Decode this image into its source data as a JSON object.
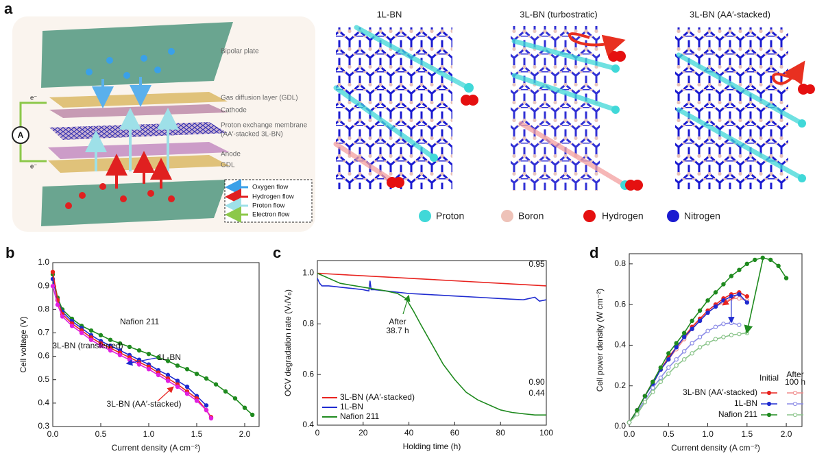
{
  "diagram": {
    "panel": "a",
    "layers": [
      "Bipolar plate",
      "Gas diffusion layer (GDL)",
      "Cathode",
      "Proton exchange membrane",
      "(AA′-stacked 3L-BN)",
      "Anode",
      "GDL"
    ],
    "electron": "e⁻",
    "ammeter": "A",
    "flows": [
      "Oxygen flow",
      "Hydrogen flow",
      "Proton flow",
      "Electron flow"
    ],
    "structures": [
      "1L-BN",
      "3L-BN (turbostratic)",
      "3L-BN (AA′-stacked)"
    ],
    "atoms": [
      "Proton",
      "Boron",
      "Hydrogen",
      "Nitrogen"
    ]
  },
  "chart_data": [
    {
      "type": "line",
      "panel": "b",
      "xlabel": "Current density (A cm⁻²)",
      "ylabel": "Cell voltage (V)",
      "xlim": [
        0,
        2.15
      ],
      "ylim": [
        0.3,
        1.0
      ],
      "xticks": [
        {
          "value": 0,
          "label": "0.0"
        },
        0.5,
        {
          "value": 1,
          "label": "1.0"
        },
        1.5,
        {
          "value": 2,
          "label": "2.0"
        }
      ],
      "yticks": [
        0.3,
        0.4,
        0.5,
        0.6,
        0.7,
        0.8,
        0.9,
        {
          "value": 1,
          "label": "1.0"
        }
      ],
      "series": [
        {
          "name": "Nafion 211",
          "color": "#1f8a1f",
          "marker": "filled",
          "x": [
            0,
            0.05,
            0.1,
            0.2,
            0.3,
            0.4,
            0.5,
            0.6,
            0.7,
            0.8,
            0.9,
            1.0,
            1.1,
            1.2,
            1.3,
            1.4,
            1.5,
            1.6,
            1.7,
            1.8,
            1.9,
            2.0,
            2.08
          ],
          "values": [
            0.95,
            0.85,
            0.8,
            0.76,
            0.73,
            0.71,
            0.69,
            0.67,
            0.655,
            0.64,
            0.625,
            0.61,
            0.595,
            0.58,
            0.56,
            0.545,
            0.525,
            0.505,
            0.48,
            0.45,
            0.42,
            0.38,
            0.35
          ]
        },
        {
          "name": "1L-BN",
          "color": "#1f2bd0",
          "marker": "filled",
          "x": [
            0,
            0.05,
            0.1,
            0.2,
            0.3,
            0.4,
            0.5,
            0.6,
            0.7,
            0.8,
            0.9,
            1.0,
            1.1,
            1.2,
            1.3,
            1.4,
            1.5,
            1.6
          ],
          "values": [
            0.93,
            0.84,
            0.79,
            0.75,
            0.72,
            0.69,
            0.665,
            0.645,
            0.625,
            0.605,
            0.585,
            0.565,
            0.54,
            0.52,
            0.495,
            0.47,
            0.43,
            0.39
          ]
        },
        {
          "name": "3L-BN (AA′-stacked)",
          "color": "#e8231f",
          "marker": "filled",
          "x": [
            0,
            0.05,
            0.1,
            0.2,
            0.3,
            0.4,
            0.5,
            0.6,
            0.7,
            0.8,
            0.9,
            1.0,
            1.1,
            1.2,
            1.3,
            1.4,
            1.5,
            1.6,
            1.65
          ],
          "values": [
            0.96,
            0.84,
            0.78,
            0.74,
            0.71,
            0.68,
            0.655,
            0.635,
            0.615,
            0.595,
            0.575,
            0.555,
            0.53,
            0.505,
            0.48,
            0.45,
            0.42,
            0.37,
            0.34
          ]
        },
        {
          "name": "3L-BN (transferred)",
          "color": "#e020e0",
          "marker": "filled",
          "x": [
            0,
            0.05,
            0.1,
            0.2,
            0.3,
            0.4,
            0.5,
            0.6,
            0.7,
            0.8,
            0.9,
            1.0,
            1.1,
            1.2,
            1.3,
            1.4,
            1.5,
            1.6,
            1.65
          ],
          "values": [
            0.9,
            0.82,
            0.77,
            0.73,
            0.7,
            0.67,
            0.645,
            0.625,
            0.605,
            0.585,
            0.565,
            0.545,
            0.52,
            0.495,
            0.47,
            0.44,
            0.41,
            0.37,
            0.335
          ]
        }
      ]
    },
    {
      "type": "line",
      "panel": "c",
      "xlabel": "Holding time (h)",
      "ylabel": "OCV degradation rate (Vₜ/V₀)",
      "xlim": [
        0,
        100
      ],
      "ylim": [
        0.4,
        1.05
      ],
      "xticks": [
        0,
        20,
        40,
        60,
        80,
        100
      ],
      "yticks": [
        0.4,
        0.6,
        0.8,
        {
          "value": 1,
          "label": "1.0"
        }
      ],
      "legend": "lower left",
      "annotations": [
        "0.95",
        "0.90",
        "After",
        "38.7 h",
        "0.44"
      ],
      "series": [
        {
          "name": "3L-BN (AA′-stacked)",
          "color": "#e8231f",
          "x": [
            0,
            20,
            40,
            60,
            80,
            100
          ],
          "values": [
            1.0,
            0.99,
            0.98,
            0.97,
            0.96,
            0.95
          ]
        },
        {
          "name": "1L-BN",
          "color": "#1f2bd0",
          "x": [
            0,
            1,
            2,
            5,
            10,
            15,
            20,
            22.5,
            23,
            23.5,
            25,
            30,
            40,
            50,
            60,
            70,
            80,
            90,
            95,
            97,
            100
          ],
          "values": [
            0.98,
            0.96,
            0.95,
            0.95,
            0.945,
            0.94,
            0.935,
            0.93,
            0.97,
            0.935,
            0.935,
            0.93,
            0.92,
            0.915,
            0.91,
            0.905,
            0.9,
            0.895,
            0.905,
            0.89,
            0.895
          ]
        },
        {
          "name": "Nafion 211",
          "color": "#1f8a1f",
          "x": [
            0,
            10,
            20,
            30,
            35,
            38.7,
            42,
            45,
            50,
            55,
            60,
            65,
            70,
            75,
            80,
            85,
            90,
            95,
            100
          ],
          "values": [
            1.0,
            0.96,
            0.945,
            0.93,
            0.92,
            0.9,
            0.85,
            0.8,
            0.72,
            0.64,
            0.58,
            0.53,
            0.5,
            0.48,
            0.46,
            0.45,
            0.445,
            0.44,
            0.44
          ]
        }
      ]
    },
    {
      "type": "line",
      "panel": "d",
      "xlabel": "Current density (A cm⁻²)",
      "ylabel": "Cell power density (W cm⁻²)",
      "xlim": [
        0,
        2.2
      ],
      "ylim": [
        0,
        0.85
      ],
      "xticks": [
        {
          "value": 0,
          "label": "0.0"
        },
        0.5,
        {
          "value": 1,
          "label": "1.0"
        },
        1.5,
        {
          "value": 2,
          "label": "2.0"
        }
      ],
      "yticks": [
        {
          "value": 0,
          "label": "0.0"
        },
        0.2,
        0.4,
        0.6,
        0.8
      ],
      "legend": "lower right",
      "legend_rows": [
        "3L-BN (AA′-stacked)",
        "1L-BN",
        "Nafion 211"
      ],
      "legend_columns": [
        "Initial",
        "After",
        "100 h"
      ],
      "series": [
        {
          "legend_row": 0,
          "legend_col": 0,
          "color": "#e8231f",
          "marker": "filled",
          "x": [
            0,
            0.1,
            0.2,
            0.3,
            0.4,
            0.5,
            0.6,
            0.7,
            0.8,
            0.9,
            1.0,
            1.1,
            1.2,
            1.3,
            1.4,
            1.5
          ],
          "values": [
            0.02,
            0.08,
            0.15,
            0.22,
            0.28,
            0.34,
            0.39,
            0.44,
            0.49,
            0.53,
            0.57,
            0.6,
            0.63,
            0.65,
            0.66,
            0.64
          ]
        },
        {
          "legend_row": 0,
          "legend_col": 1,
          "color": "#f08a8a",
          "marker": "open",
          "x": [
            0,
            0.1,
            0.2,
            0.3,
            0.4,
            0.5,
            0.6,
            0.7,
            0.8,
            0.9,
            1.0,
            1.1,
            1.2,
            1.3,
            1.4,
            1.5
          ],
          "values": [
            0.02,
            0.08,
            0.15,
            0.21,
            0.28,
            0.33,
            0.38,
            0.43,
            0.48,
            0.52,
            0.56,
            0.59,
            0.61,
            0.63,
            0.63,
            0.62
          ]
        },
        {
          "legend_row": 1,
          "legend_col": 0,
          "color": "#1f2bd0",
          "marker": "filled",
          "x": [
            0,
            0.1,
            0.2,
            0.3,
            0.4,
            0.5,
            0.6,
            0.7,
            0.8,
            0.9,
            1.0,
            1.1,
            1.2,
            1.3,
            1.4,
            1.5
          ],
          "values": [
            0.02,
            0.08,
            0.15,
            0.21,
            0.28,
            0.33,
            0.39,
            0.44,
            0.48,
            0.52,
            0.56,
            0.59,
            0.62,
            0.64,
            0.65,
            0.61
          ]
        },
        {
          "legend_row": 1,
          "legend_col": 1,
          "color": "#8a8ae6",
          "marker": "open",
          "x": [
            0,
            0.1,
            0.2,
            0.3,
            0.4,
            0.5,
            0.6,
            0.7,
            0.8,
            0.9,
            1.0,
            1.1,
            1.2,
            1.3,
            1.4
          ],
          "values": [
            0.02,
            0.07,
            0.13,
            0.19,
            0.24,
            0.29,
            0.33,
            0.37,
            0.41,
            0.44,
            0.47,
            0.49,
            0.505,
            0.51,
            0.5
          ]
        },
        {
          "legend_row": 2,
          "legend_col": 0,
          "color": "#1f8a1f",
          "marker": "filled",
          "x": [
            0,
            0.1,
            0.2,
            0.3,
            0.4,
            0.5,
            0.6,
            0.7,
            0.8,
            0.9,
            1.0,
            1.1,
            1.2,
            1.3,
            1.4,
            1.5,
            1.6,
            1.7,
            1.8,
            1.9,
            2.0
          ],
          "values": [
            0.02,
            0.08,
            0.15,
            0.22,
            0.29,
            0.36,
            0.41,
            0.46,
            0.52,
            0.57,
            0.62,
            0.66,
            0.7,
            0.74,
            0.77,
            0.8,
            0.82,
            0.83,
            0.82,
            0.79,
            0.73
          ]
        },
        {
          "legend_row": 2,
          "legend_col": 1,
          "color": "#8ac48a",
          "marker": "open",
          "x": [
            0,
            0.1,
            0.2,
            0.3,
            0.4,
            0.5,
            0.6,
            0.7,
            0.8,
            0.9,
            1.0,
            1.1,
            1.2,
            1.3,
            1.4,
            1.5
          ],
          "values": [
            0.02,
            0.06,
            0.12,
            0.17,
            0.22,
            0.26,
            0.3,
            0.33,
            0.36,
            0.39,
            0.41,
            0.43,
            0.44,
            0.45,
            0.455,
            0.46
          ]
        }
      ]
    }
  ]
}
